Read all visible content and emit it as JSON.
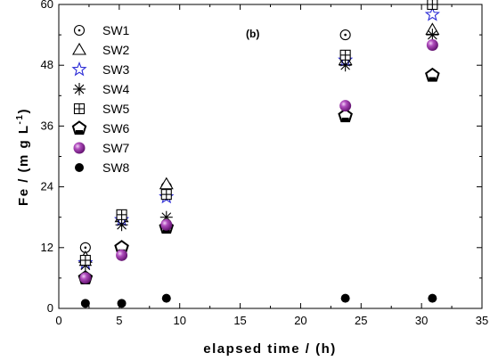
{
  "chart_data": {
    "type": "scatter",
    "annotation": "(b)",
    "xlabel": "elapsed time / (h)",
    "ylabel_main": "Fe / (m g L",
    "ylabel_sup": "-1",
    "ylabel_close": ")",
    "xlim": [
      0,
      35
    ],
    "ylim": [
      0,
      60
    ],
    "xticks": [
      0,
      5,
      10,
      15,
      20,
      25,
      30,
      35
    ],
    "yticks": [
      0,
      12,
      24,
      36,
      48,
      60
    ],
    "legend_position": "top-left",
    "grid": false,
    "series": [
      {
        "name": "SW1",
        "marker": "circle-open",
        "color": "#000000",
        "x": [
          2.2,
          5.2,
          8.9,
          23.7,
          30.9
        ],
        "y": [
          12,
          18,
          24,
          54,
          60
        ]
      },
      {
        "name": "SW2",
        "marker": "triangle-open",
        "color": "#000000",
        "x": [
          2.2,
          5.2,
          8.9,
          23.7,
          30.9
        ],
        "y": [
          10,
          18,
          24.5,
          49,
          55
        ]
      },
      {
        "name": "SW3",
        "marker": "star-open",
        "color": "#2b2bd6",
        "x": [
          2.2,
          5.2,
          8.9,
          23.7,
          30.9
        ],
        "y": [
          9,
          17.5,
          22,
          49,
          58
        ]
      },
      {
        "name": "SW4",
        "marker": "asterisk",
        "color": "#000000",
        "x": [
          2.2,
          5.2,
          8.9,
          23.7,
          30.9
        ],
        "y": [
          8.5,
          16.5,
          18,
          48,
          54
        ]
      },
      {
        "name": "SW5",
        "marker": "square-plus",
        "color": "#000000",
        "x": [
          2.2,
          5.2,
          8.9,
          23.7,
          30.9
        ],
        "y": [
          9.5,
          18.5,
          22.5,
          50,
          60
        ]
      },
      {
        "name": "SW6",
        "marker": "pentagon-outline",
        "color": "#000000",
        "x": [
          2.2,
          5.2,
          8.9,
          23.7,
          30.9
        ],
        "y": [
          6,
          12,
          16,
          38,
          46
        ]
      },
      {
        "name": "SW7",
        "marker": "sphere",
        "color": "#7a1b86",
        "x": [
          2.2,
          5.2,
          8.9,
          23.7,
          30.9
        ],
        "y": [
          6,
          10.5,
          16.5,
          40,
          52
        ]
      },
      {
        "name": "SW8",
        "marker": "dot",
        "color": "#000000",
        "x": [
          2.2,
          5.2,
          8.9,
          23.7,
          30.9
        ],
        "y": [
          1,
          1,
          2,
          2,
          2
        ]
      }
    ]
  }
}
